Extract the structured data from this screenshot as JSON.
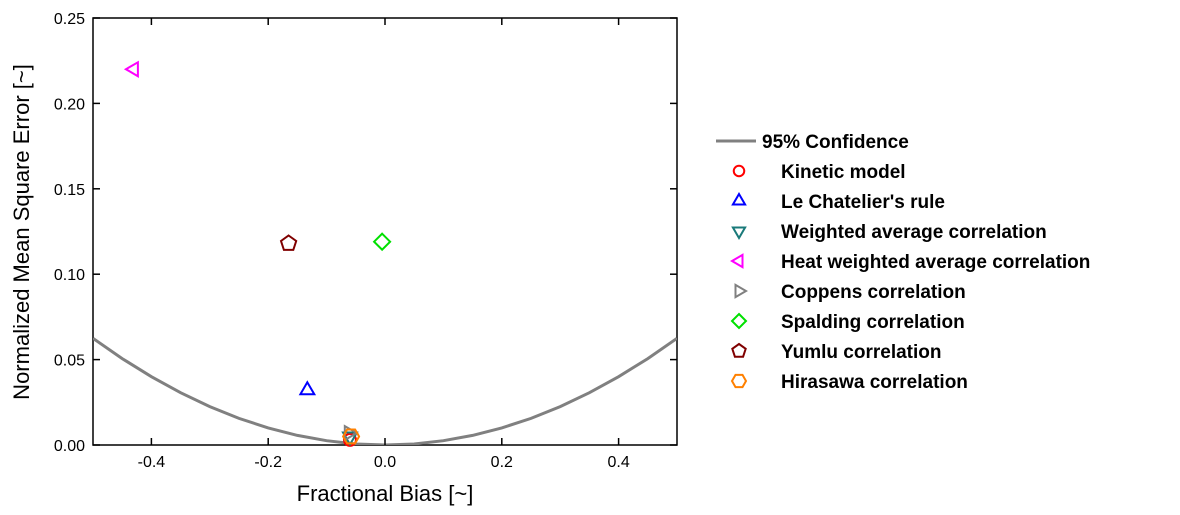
{
  "chart_data": {
    "type": "scatter",
    "title": "",
    "xlabel": "Fractional Bias [~]",
    "ylabel": "Normalized Mean Square Error [~]",
    "xlim": [
      -0.5,
      0.5
    ],
    "ylim": [
      0,
      0.25
    ],
    "x_ticks": [
      -0.4,
      -0.2,
      0.0,
      0.2,
      0.4
    ],
    "x_tick_labels": [
      "-0.4",
      "-0.2",
      "0.0",
      "0.2",
      "0.4"
    ],
    "y_ticks": [
      0,
      0.05,
      0.1,
      0.15,
      0.2,
      0.25
    ],
    "y_tick_labels": [
      "0.00",
      "0.05",
      "0.10",
      "0.15",
      "0.20",
      "0.25"
    ],
    "grid": false,
    "legend_position": "right",
    "confidence_curve": {
      "name": "95% Confidence",
      "color": "#808080",
      "x": [
        -0.5,
        -0.45,
        -0.4,
        -0.35,
        -0.3,
        -0.25,
        -0.2,
        -0.15,
        -0.1,
        -0.05,
        0.0,
        0.05,
        0.1,
        0.15,
        0.2,
        0.25,
        0.3,
        0.35,
        0.4,
        0.45,
        0.5
      ],
      "y": [
        0.0625,
        0.0506,
        0.04,
        0.0306,
        0.0225,
        0.0156,
        0.01,
        0.0056,
        0.0025,
        0.0006,
        0.0,
        0.0006,
        0.0025,
        0.0056,
        0.01,
        0.0156,
        0.0225,
        0.0306,
        0.04,
        0.0506,
        0.0625
      ]
    },
    "series": [
      {
        "name": "Kinetic model",
        "marker": "circle",
        "color": "#ff0000",
        "x": [
          -0.06
        ],
        "y": [
          0.003
        ]
      },
      {
        "name": "Le Chatelier's rule",
        "marker": "triangle-up",
        "color": "#0000ff",
        "x": [
          -0.133
        ],
        "y": [
          0.032
        ]
      },
      {
        "name": "Weighted average correlation",
        "marker": "triangle-down",
        "color": "#1a7a7a",
        "x": [
          -0.06
        ],
        "y": [
          0.005
        ]
      },
      {
        "name": "Heat weighted average correlation",
        "marker": "triangle-left",
        "color": "#ff00ff",
        "x": [
          -0.43
        ],
        "y": [
          0.22
        ]
      },
      {
        "name": "Coppens correlation",
        "marker": "triangle-right",
        "color": "#808080",
        "x": [
          -0.062
        ],
        "y": [
          0.007
        ]
      },
      {
        "name": "Spalding correlation",
        "marker": "diamond",
        "color": "#00e000",
        "x": [
          -0.005
        ],
        "y": [
          0.119
        ]
      },
      {
        "name": "Yumlu correlation",
        "marker": "pentagon",
        "color": "#800000",
        "x": [
          -0.165
        ],
        "y": [
          0.118
        ]
      },
      {
        "name": "Hirasawa correlation",
        "marker": "hexagon",
        "color": "#ff8000",
        "x": [
          -0.058
        ],
        "y": [
          0.005
        ]
      }
    ]
  }
}
